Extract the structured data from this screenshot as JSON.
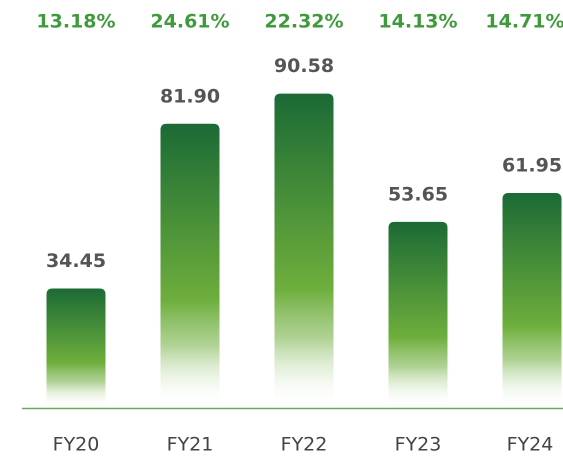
{
  "chart_data": {
    "type": "bar",
    "categories": [
      "FY20",
      "FY21",
      "FY22",
      "FY23",
      "FY24"
    ],
    "values": [
      34.45,
      81.9,
      90.58,
      53.65,
      61.95
    ],
    "value_labels": [
      "34.45",
      "81.90",
      "90.58",
      "53.65",
      "61.95"
    ],
    "annotations": [
      "13.18%",
      "24.61%",
      "22.32%",
      "14.13%",
      "14.71%"
    ],
    "color": "#1b6a35"
  }
}
